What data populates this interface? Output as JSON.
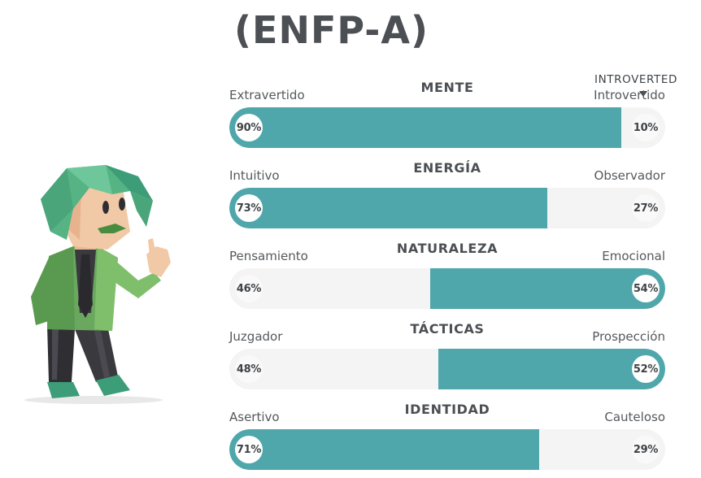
{
  "header": {
    "title": "(ENFP-A)"
  },
  "avatar": {
    "icon": "person-avatar-icon"
  },
  "tooltip": {
    "text": "INTROVERTED"
  },
  "colors": {
    "accent": "#4fa7ab",
    "track": "#f4f4f4"
  },
  "traits": [
    {
      "name": "MENTE",
      "left_label": "Extravertido",
      "right_label": "Introvertido",
      "left_pct": "90%",
      "right_pct": "10%",
      "dominant": "left",
      "fill_fraction": 0.9
    },
    {
      "name": "ENERGÍA",
      "left_label": "Intuitivo",
      "right_label": "Observador",
      "left_pct": "73%",
      "right_pct": "27%",
      "dominant": "left",
      "fill_fraction": 0.73
    },
    {
      "name": "NATURALEZA",
      "left_label": "Pensamiento",
      "right_label": "Emocional",
      "left_pct": "46%",
      "right_pct": "54%",
      "dominant": "right",
      "fill_fraction": 0.54
    },
    {
      "name": "TÁCTICAS",
      "left_label": "Juzgador",
      "right_label": "Prospección",
      "left_pct": "48%",
      "right_pct": "52%",
      "dominant": "right",
      "fill_fraction": 0.52
    },
    {
      "name": "IDENTIDAD",
      "left_label": "Asertivo",
      "right_label": "Cauteloso",
      "left_pct": "71%",
      "right_pct": "29%",
      "dominant": "left",
      "fill_fraction": 0.71
    }
  ]
}
